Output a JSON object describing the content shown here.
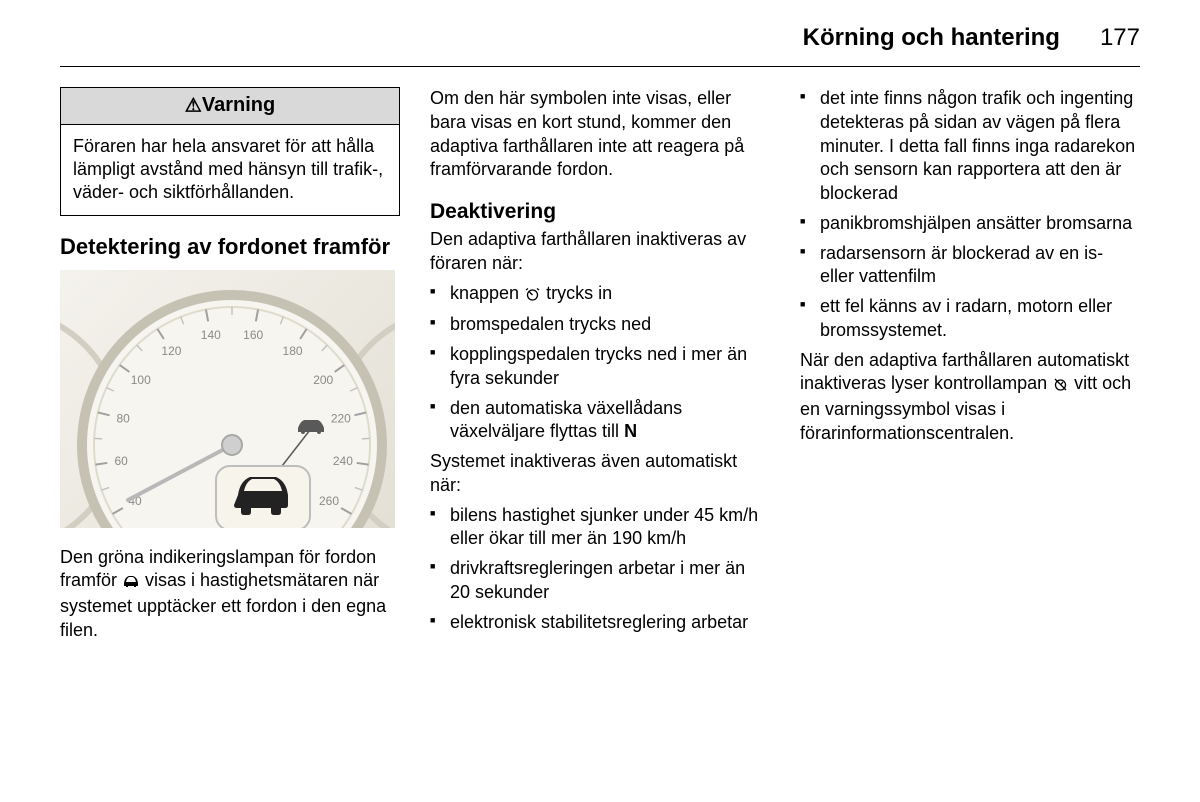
{
  "header": {
    "title": "Körning och hantering",
    "page": "177"
  },
  "col1": {
    "warning": {
      "heading": "Varning",
      "body": "Föraren har hela ansvaret för att hålla lämpligt avstånd med hänsyn till trafik-, väder- och siktförhållanden."
    },
    "section_title": "Detektering av fordonet framför",
    "speedometer": {
      "ticks": [
        "40",
        "60",
        "80",
        "100",
        "120",
        "140",
        "160",
        "180",
        "200",
        "220",
        "240",
        "260"
      ],
      "dial_bg": "#f4f2ec",
      "face": "#f7f5ef",
      "rim": "#c5c2b4",
      "needle": "#b8b8b8",
      "text_color": "#8a8a8a",
      "bubble_bg": "#f7f4ec",
      "bubble_border": "#bdbdbd"
    },
    "caption_pre": "Den gröna indikeringslampan för fordon framför ",
    "caption_post": " visas i hastighetsmätaren när systemet upptäcker ett fordon i den egna filen."
  },
  "col2": {
    "intro": "Om den här symbolen inte visas, eller bara visas en kort stund, kommer den adaptiva farthållaren inte att reagera på framförvarande fordon.",
    "deactivation_head": "Deaktivering",
    "deactivation_lead": "Den adaptiva farthållaren inaktiveras av föraren när:",
    "list1": [
      {
        "pre": "knappen ",
        "icon": true,
        "post": " trycks in"
      },
      {
        "pre": "bromspedalen trycks ned"
      },
      {
        "pre": "kopplingspedalen trycks ned i mer än fyra sekunder"
      },
      {
        "pre": "den automatiska växellådans växelväljare flyttas till ",
        "bold": "N"
      }
    ],
    "mid": "Systemet inaktiveras även automatiskt när:",
    "list2": [
      "bilens hastighet sjunker under 45 km/h eller ökar till mer än 190 km/h",
      "drivkraftsregleringen arbetar i mer än 20 sekunder",
      "elektronisk stabilitetsreglering arbetar"
    ]
  },
  "col3": {
    "list3": [
      "det inte finns någon trafik och ingenting detekteras på sidan av vägen på flera minuter. I detta fall finns inga radarekon och sensorn kan rapportera att den är blockerad",
      "panikbromshjälpen ansätter bromsarna",
      "radarsensorn är blockerad av en is- eller vattenfilm",
      "ett fel känns av i radarn, motorn eller bromssystemet."
    ],
    "tail_pre": "När den adaptiva farthållaren automatiskt inaktiveras lyser kontrollampan ",
    "tail_post": " vitt och en varningssymbol visas i förarinformationscentralen."
  }
}
